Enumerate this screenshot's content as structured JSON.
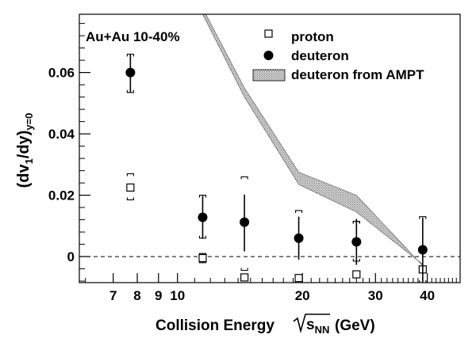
{
  "chart_data": {
    "type": "scatter",
    "title": "",
    "annotation": "Au+Au 10-40%",
    "xlabel": {
      "prefix": "Collision Energy",
      "sqrt_symbol": "s",
      "subscript": "NN",
      "unit": "(GeV)"
    },
    "ylabel": {
      "main": "(dv",
      "sub1": "1",
      "mid": "/dy)",
      "sub2": "y=0"
    },
    "x_scale": "log",
    "xlim": [
      5.8,
      48
    ],
    "ylim": [
      -0.0085,
      0.079
    ],
    "x_ticks": [
      {
        "value": 7,
        "label": "7"
      },
      {
        "value": 8,
        "label": "8"
      },
      {
        "value": 9,
        "label": "9"
      },
      {
        "value": 10,
        "label": "10"
      },
      {
        "value": 20,
        "label": "20"
      },
      {
        "value": 30,
        "label": "30"
      },
      {
        "value": 40,
        "label": "40"
      }
    ],
    "y_ticks": [
      {
        "value": 0,
        "label": "0"
      },
      {
        "value": 0.02,
        "label": "0.02"
      },
      {
        "value": 0.04,
        "label": "0.04"
      },
      {
        "value": 0.06,
        "label": "0.06"
      }
    ],
    "zero_line": true,
    "grid": false,
    "legend": {
      "position": "top-right",
      "entries": [
        "proton",
        "deuteron",
        "deuteron from AMPT"
      ]
    },
    "series": [
      {
        "name": "proton",
        "marker": "open-square",
        "points": [
          {
            "x": 7.7,
            "y": 0.0225,
            "stat": 0.001,
            "sys_lo": 0.0185,
            "sys_hi": 0.027
          },
          {
            "x": 11.5,
            "y": -0.0005,
            "stat": 0.0015,
            "sys_lo": -0.002,
            "sys_hi": 0.001
          },
          {
            "x": 14.5,
            "y": -0.0068,
            "stat": 0.001,
            "sys_lo": -0.0045,
            "sys_hi": 0.026
          },
          {
            "x": 19.6,
            "y": -0.007,
            "stat": 0.0005,
            "sys_lo": -0.0085,
            "sys_hi": 0.015
          },
          {
            "x": 27,
            "y": -0.0058,
            "stat": 0.0005,
            "sys_lo": -0.0058,
            "sys_hi": 0.0115
          },
          {
            "x": 39,
            "y": -0.0042,
            "stat": 0.0005,
            "sys_lo": -0.0085,
            "sys_hi": 0.013
          }
        ]
      },
      {
        "name": "deuteron",
        "marker": "filled-circle",
        "points": [
          {
            "x": 7.7,
            "y": 0.06,
            "err_lo": 0.0065,
            "err_hi": 0.006,
            "sys_lo": 0.0535,
            "sys_hi": 0.066
          },
          {
            "x": 11.5,
            "y": 0.0128,
            "err_lo": 0.007,
            "err_hi": 0.007,
            "sys_lo": 0.006,
            "sys_hi": 0.02
          },
          {
            "x": 14.5,
            "y": 0.0112,
            "err_lo": 0.0095,
            "err_hi": 0.009
          },
          {
            "x": 19.6,
            "y": 0.006,
            "err_lo": 0.007,
            "err_hi": 0.007
          },
          {
            "x": 27,
            "y": 0.0048,
            "err_lo": 0.0075,
            "err_hi": 0.0075,
            "sys_lo": -0.0015,
            "sys_hi": 0.0115
          },
          {
            "x": 39,
            "y": 0.0022,
            "err_lo": 0.0105,
            "err_hi": 0.0105
          }
        ]
      },
      {
        "name": "deuteron from AMPT",
        "style": "band",
        "color": "#b4b4b4",
        "upper": [
          {
            "x": 11.5,
            "y": 0.081
          },
          {
            "x": 14.5,
            "y": 0.055
          },
          {
            "x": 19.6,
            "y": 0.0275
          },
          {
            "x": 27,
            "y": 0.02
          },
          {
            "x": 39,
            "y": -0.003
          }
        ],
        "lower": [
          {
            "x": 11.5,
            "y": 0.079
          },
          {
            "x": 14.5,
            "y": 0.052
          },
          {
            "x": 19.6,
            "y": 0.0235
          },
          {
            "x": 27,
            "y": 0.0145
          },
          {
            "x": 39,
            "y": -0.0025
          }
        ]
      }
    ]
  }
}
